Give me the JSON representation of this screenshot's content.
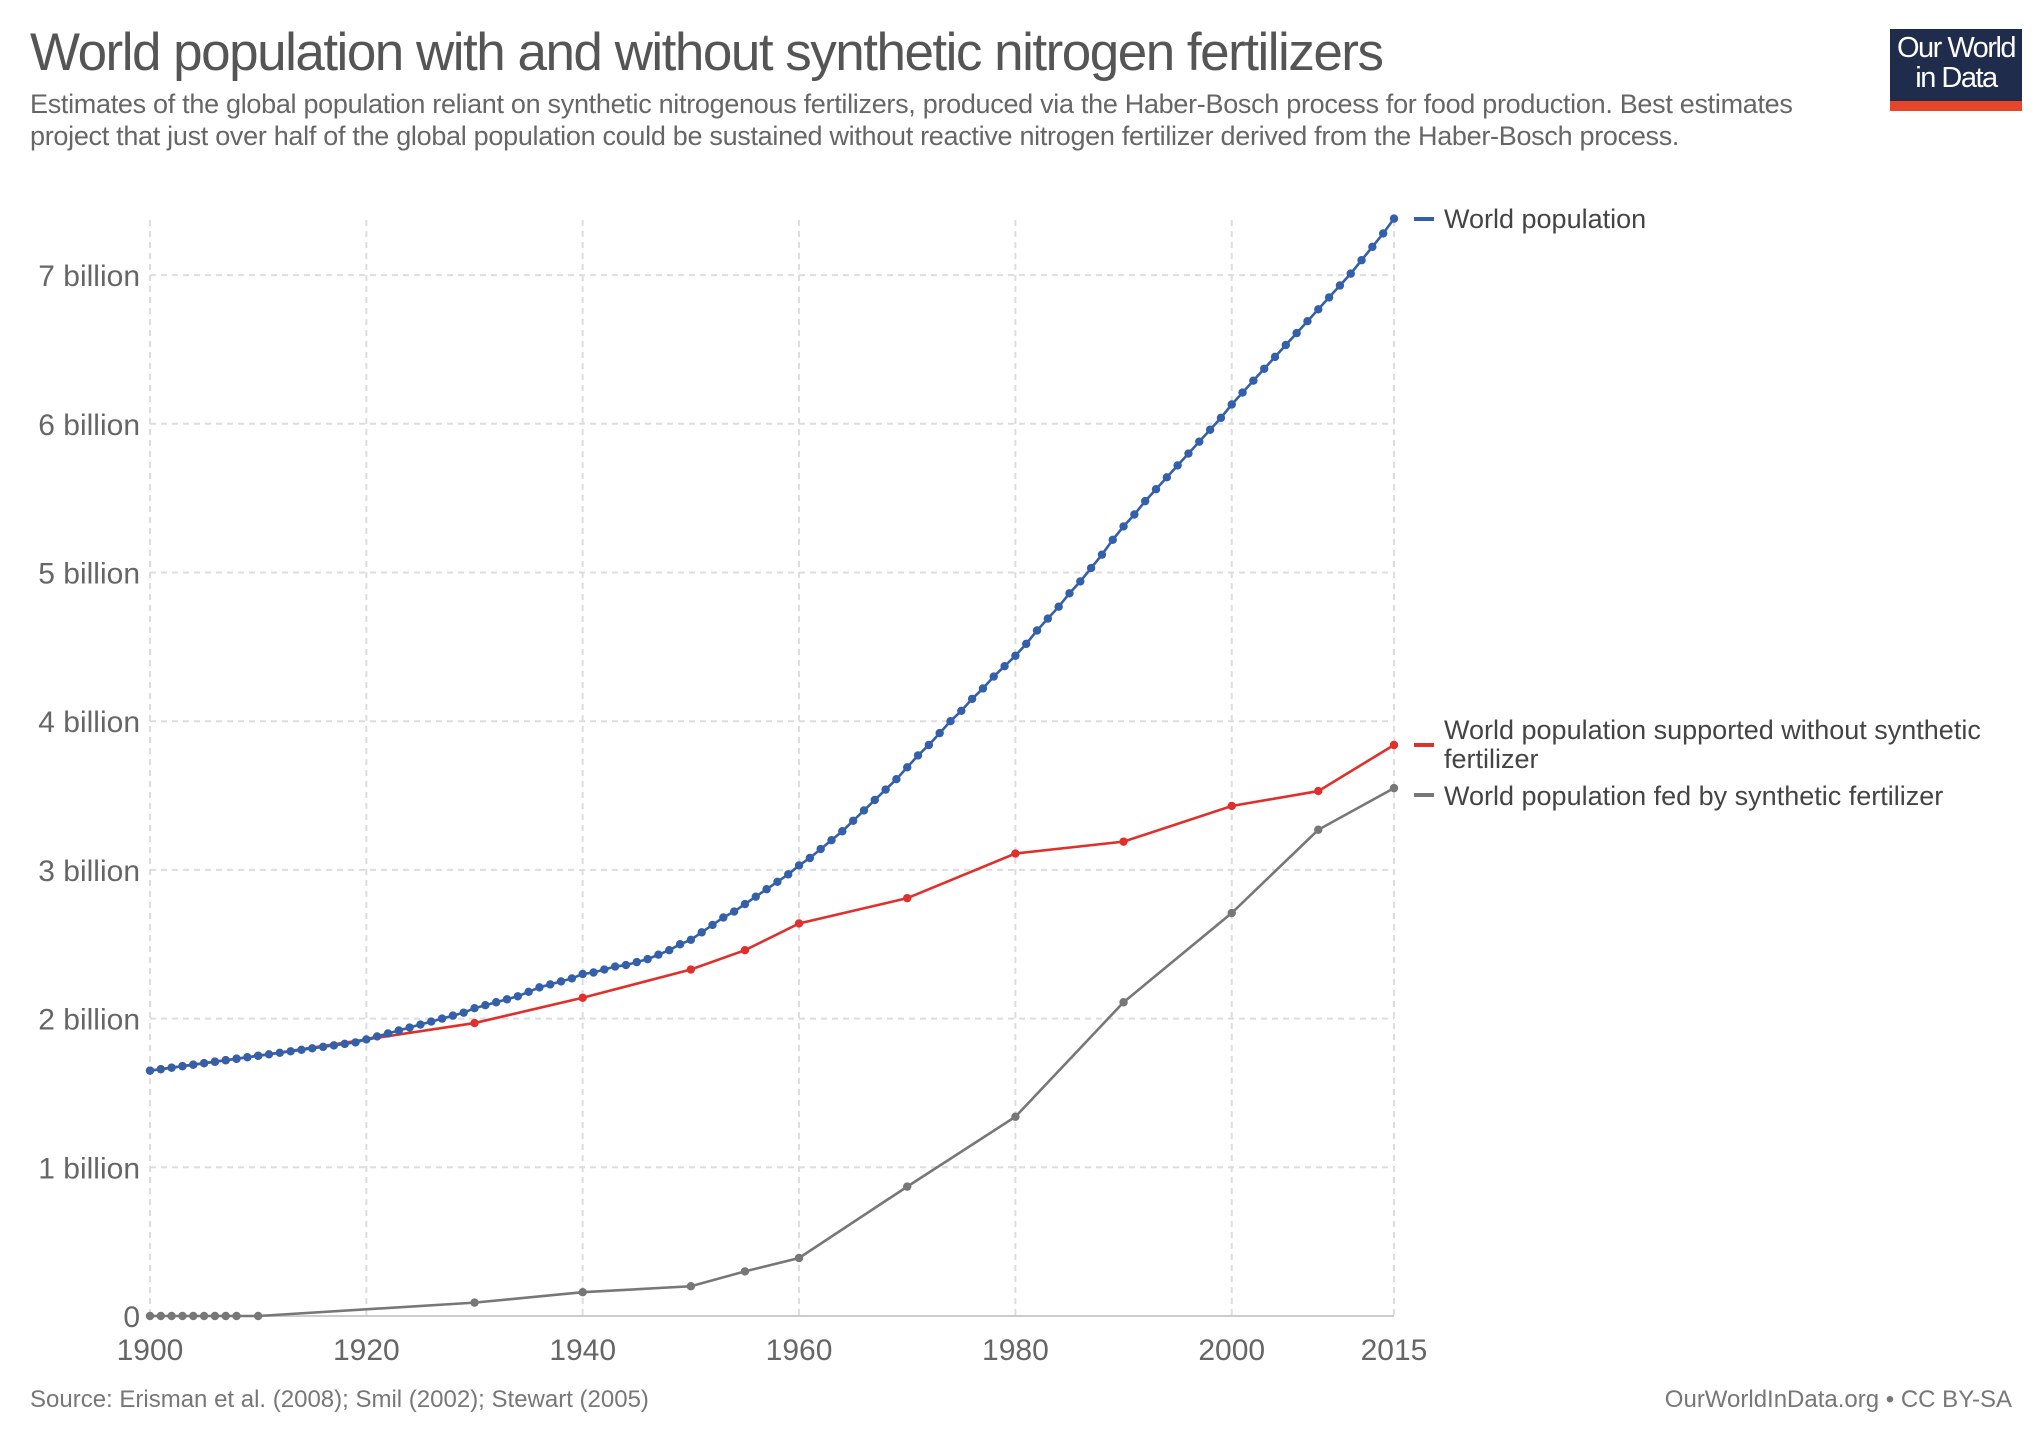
{
  "header": {
    "title": "World population with and without synthetic nitrogen fertilizers",
    "subtitle": "Estimates of the global population reliant on synthetic nitrogenous fertilizers, produced via the Haber-Bosch process for food production. Best estimates project that just over half of the global population could be sustained without reactive nitrogen fertilizer derived from the Haber-Bosch process.",
    "logo_line1": "Our World",
    "logo_line2": "in Data"
  },
  "footer": {
    "source": "Source: Erisman et al. (2008); Smil (2002); Stewart (2005)",
    "credit": "OurWorldInData.org • CC BY-SA"
  },
  "chart_data": {
    "type": "line",
    "title": "World population with and without synthetic nitrogen fertilizers",
    "xlim": [
      1900,
      2015
    ],
    "ylim": [
      0,
      7400000000
    ],
    "grid": true,
    "legend_placement": "right (end-of-line labels)",
    "x_ticks": [
      "1900",
      "1920",
      "1940",
      "1960",
      "1980",
      "2000",
      "2015"
    ],
    "x_tick_values": [
      1900,
      1920,
      1940,
      1960,
      1980,
      2000,
      2015
    ],
    "y_ticks": [
      "0",
      "1 billion",
      "2 billion",
      "3 billion",
      "4 billion",
      "5 billion",
      "6 billion",
      "7 billion"
    ],
    "y_tick_values": [
      0,
      1,
      2,
      3,
      4,
      5,
      6,
      7
    ],
    "y_unit": "billion",
    "series": [
      {
        "name": "World population",
        "color": "#3360a9",
        "x": [
          1900,
          1901,
          1902,
          1903,
          1904,
          1905,
          1906,
          1907,
          1908,
          1909,
          1910,
          1911,
          1912,
          1913,
          1914,
          1915,
          1916,
          1917,
          1918,
          1919,
          1920,
          1921,
          1922,
          1923,
          1924,
          1925,
          1926,
          1927,
          1928,
          1929,
          1930,
          1931,
          1932,
          1933,
          1934,
          1935,
          1936,
          1937,
          1938,
          1939,
          1940,
          1941,
          1942,
          1943,
          1944,
          1945,
          1946,
          1947,
          1948,
          1949,
          1950,
          1951,
          1952,
          1953,
          1954,
          1955,
          1956,
          1957,
          1958,
          1959,
          1960,
          1961,
          1962,
          1963,
          1964,
          1965,
          1966,
          1967,
          1968,
          1969,
          1970,
          1971,
          1972,
          1973,
          1974,
          1975,
          1976,
          1977,
          1978,
          1979,
          1980,
          1981,
          1982,
          1983,
          1984,
          1985,
          1986,
          1987,
          1988,
          1989,
          1990,
          1991,
          1992,
          1993,
          1994,
          1995,
          1996,
          1997,
          1998,
          1999,
          2000,
          2001,
          2002,
          2003,
          2004,
          2005,
          2006,
          2007,
          2008,
          2009,
          2010,
          2011,
          2012,
          2013,
          2014,
          2015
        ],
        "y": [
          1.65,
          1.66,
          1.67,
          1.68,
          1.69,
          1.7,
          1.71,
          1.72,
          1.73,
          1.74,
          1.75,
          1.76,
          1.77,
          1.78,
          1.79,
          1.8,
          1.81,
          1.82,
          1.83,
          1.84,
          1.86,
          1.88,
          1.9,
          1.92,
          1.94,
          1.96,
          1.98,
          2.0,
          2.02,
          2.04,
          2.07,
          2.09,
          2.11,
          2.13,
          2.15,
          2.18,
          2.21,
          2.23,
          2.25,
          2.27,
          2.3,
          2.31,
          2.33,
          2.35,
          2.36,
          2.38,
          2.4,
          2.43,
          2.46,
          2.5,
          2.53,
          2.58,
          2.63,
          2.68,
          2.72,
          2.77,
          2.82,
          2.87,
          2.92,
          2.97,
          3.03,
          3.08,
          3.14,
          3.2,
          3.26,
          3.33,
          3.4,
          3.47,
          3.54,
          3.61,
          3.69,
          3.77,
          3.84,
          3.92,
          4.0,
          4.07,
          4.15,
          4.22,
          4.3,
          4.37,
          4.44,
          4.52,
          4.61,
          4.69,
          4.77,
          4.86,
          4.94,
          5.03,
          5.12,
          5.22,
          5.31,
          5.39,
          5.48,
          5.56,
          5.64,
          5.72,
          5.8,
          5.88,
          5.96,
          6.04,
          6.13,
          6.21,
          6.29,
          6.37,
          6.45,
          6.53,
          6.61,
          6.69,
          6.77,
          6.85,
          6.93,
          7.01,
          7.1,
          7.19,
          7.28,
          7.38
        ]
      },
      {
        "name": "World population supported without synthetic fertilizer",
        "color": "#e0302c",
        "x": [
          1900,
          1901,
          1902,
          1903,
          1904,
          1905,
          1906,
          1907,
          1908,
          1910,
          1930,
          1940,
          1950,
          1955,
          1960,
          1970,
          1980,
          1990,
          2000,
          2008,
          2015
        ],
        "y": [
          1.65,
          1.66,
          1.67,
          1.68,
          1.69,
          1.7,
          1.71,
          1.72,
          1.73,
          1.75,
          1.97,
          2.14,
          2.33,
          2.46,
          2.64,
          2.81,
          3.11,
          3.19,
          3.43,
          3.53,
          3.84
        ]
      },
      {
        "name": "World population fed by synthetic fertilizer",
        "color": "#777777",
        "x": [
          1900,
          1901,
          1902,
          1903,
          1904,
          1905,
          1906,
          1907,
          1908,
          1910,
          1930,
          1940,
          1950,
          1955,
          1960,
          1970,
          1980,
          1990,
          2000,
          2008,
          2015
        ],
        "y": [
          0,
          0,
          0,
          0,
          0,
          0,
          0,
          0,
          0,
          0,
          0.09,
          0.16,
          0.2,
          0.3,
          0.39,
          0.87,
          1.34,
          2.11,
          2.71,
          3.27,
          3.55
        ]
      }
    ],
    "legend": [
      {
        "line1": "World population",
        "line2": ""
      },
      {
        "line1": "World population supported without synthetic",
        "line2": "fertilizer"
      },
      {
        "line1": "World population fed by synthetic fertilizer",
        "line2": ""
      }
    ]
  }
}
